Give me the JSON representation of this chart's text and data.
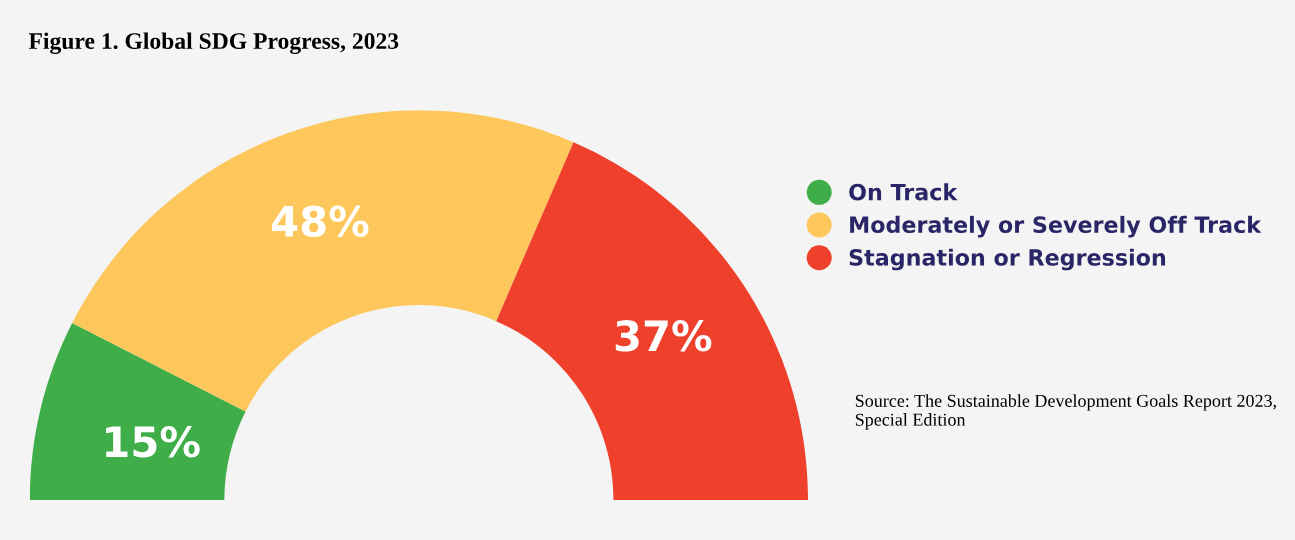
{
  "chart_data": {
    "type": "donut",
    "title": "Figure 1. Global SDG Progress, 2023",
    "categories": [
      "On Track",
      "Moderately or Severely Off Track",
      "Stagnation or Regression"
    ],
    "values": [
      15,
      48,
      37
    ],
    "colors": [
      "#3fae49",
      "#fdc75c",
      "#ee402b"
    ],
    "value_labels": [
      "15%",
      "48%",
      "37%"
    ],
    "legend": "right",
    "annotations": [
      "Source: The Sustainable Development Goals Report 2023, Special Edition"
    ]
  }
}
